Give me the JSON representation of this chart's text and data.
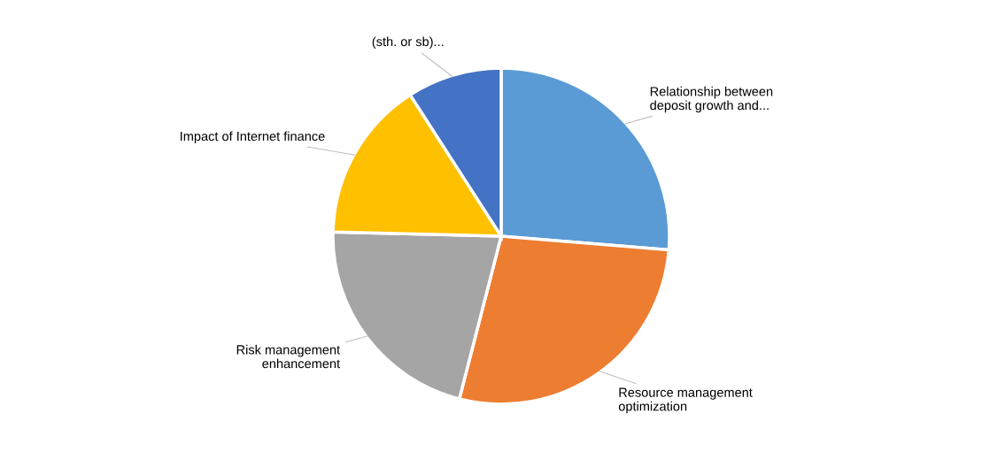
{
  "chart_data": {
    "type": "pie",
    "categories": [
      "Relationship between\ndeposit growth and...",
      "Resource management\noptimization",
      "Risk management\nenhancement",
      "Impact of Internet finance",
      "(sth. or sb)..."
    ],
    "values": [
      26.3,
      27.7,
      21.4,
      15.5,
      9.1
    ],
    "colors": [
      "#5b9bd5",
      "#ed7d31",
      "#a5a5a5",
      "#ffc000",
      "#4472c4"
    ],
    "legend": false
  }
}
